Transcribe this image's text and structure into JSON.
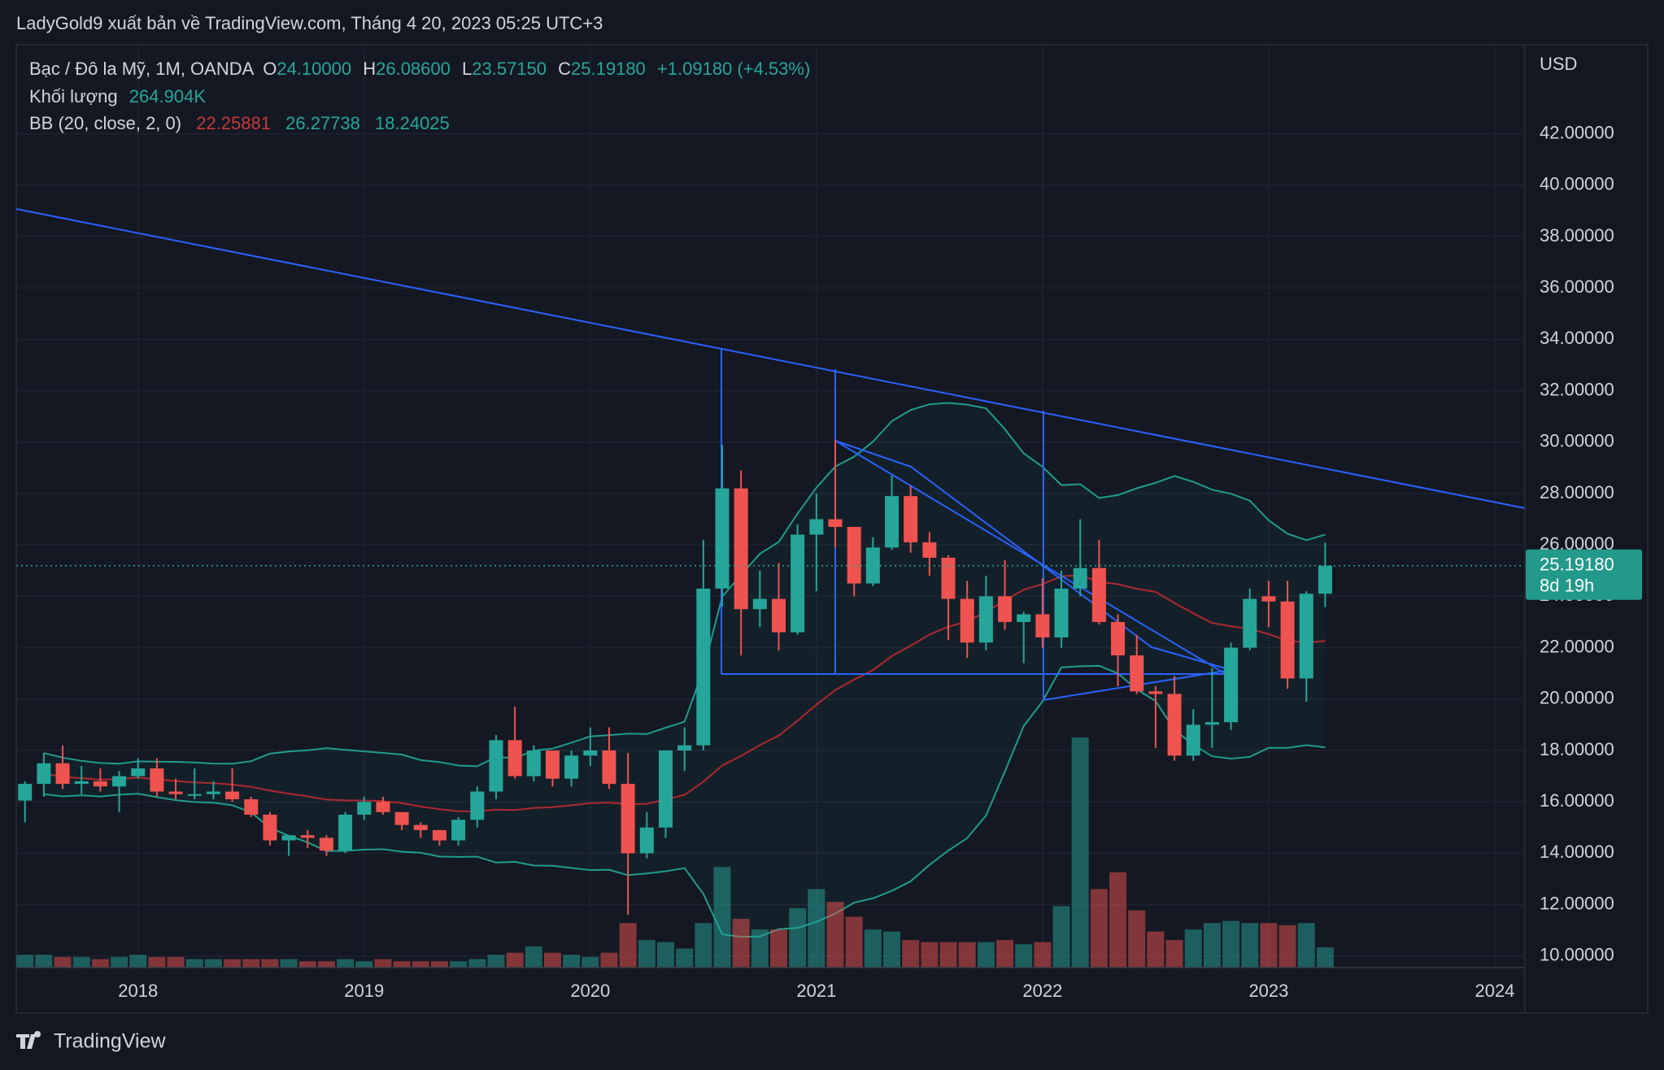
{
  "chart_data": {
    "type": "candlestick",
    "title": "LadyGold9 xuất bản về TradingView.com, Tháng 4 20, 2023 05:25 UTC+3",
    "legend": {
      "symbol": "Bạc / Đô la Mỹ, 1M, OANDA",
      "ohlc": [
        {
          "key": "O",
          "text": "24.10000"
        },
        {
          "key": "H",
          "text": "26.08600"
        },
        {
          "key": "L",
          "text": "23.57150"
        },
        {
          "key": "C",
          "text": "25.19180"
        }
      ],
      "change": "+1.09180 (+4.53%)",
      "volume_name": "Khối lượng",
      "volume_text": "264.904K",
      "bb_name": "BB (20, close, 2, 0)",
      "bb_texts": [
        "22.25881",
        "26.27738",
        "18.24025"
      ]
    },
    "currency": "USD",
    "last_label": {
      "price": "25.19180",
      "countdown": "8d 19h"
    },
    "brand": "TradingView",
    "up_color": "#26a69a",
    "down_color": "#ef5350",
    "categories": [
      null,
      null,
      null,
      null,
      null,
      null,
      "2018",
      null,
      null,
      null,
      null,
      null,
      null,
      null,
      null,
      null,
      null,
      null,
      "2019",
      null,
      null,
      null,
      null,
      null,
      null,
      null,
      null,
      null,
      null,
      null,
      "2020",
      null,
      null,
      null,
      null,
      null,
      null,
      null,
      null,
      null,
      null,
      null,
      "2021",
      null,
      null,
      null,
      null,
      null,
      null,
      null,
      null,
      null,
      null,
      null,
      "2022",
      null,
      null,
      null,
      null,
      null,
      null,
      null,
      null,
      null,
      null,
      null,
      "2023",
      null,
      null,
      null,
      null,
      null,
      null,
      null,
      null,
      null,
      null,
      null,
      "2024"
    ],
    "open": [
      16.05,
      16.7,
      17.5,
      16.7,
      16.8,
      16.6,
      17.0,
      17.3,
      16.4,
      16.3,
      16.3,
      16.4,
      16.1,
      15.5,
      14.5,
      14.7,
      14.6,
      14.1,
      15.5,
      16.0,
      15.6,
      15.1,
      14.9,
      14.5,
      15.3,
      16.4,
      18.4,
      17.0,
      18.0,
      16.9,
      17.8,
      18.0,
      16.7,
      14.0,
      15.0,
      18.0,
      18.2,
      24.3,
      28.2,
      23.5,
      23.9,
      22.6,
      26.4,
      27.0,
      26.7,
      24.5,
      25.9,
      27.9,
      26.1,
      25.5,
      23.9,
      22.2,
      24.0,
      23.0,
      23.3,
      22.4,
      24.3,
      25.1,
      23.0,
      21.7,
      20.3,
      20.2,
      17.8,
      19.0,
      19.1,
      22.0,
      24.0,
      23.8,
      20.8,
      24.1,
      null,
      null,
      null,
      null,
      null,
      null,
      null,
      null,
      null
    ],
    "high": [
      16.8,
      17.9,
      18.2,
      17.4,
      17.3,
      17.2,
      17.7,
      17.7,
      16.9,
      17.3,
      16.8,
      17.3,
      16.2,
      15.6,
      14.7,
      14.9,
      14.7,
      15.6,
      16.2,
      16.2,
      15.6,
      15.2,
      14.9,
      15.4,
      16.6,
      18.6,
      19.7,
      18.2,
      18.0,
      18.0,
      18.9,
      18.9,
      17.9,
      15.6,
      18.0,
      18.9,
      26.2,
      29.9,
      28.9,
      25.0,
      25.3,
      26.8,
      28.0,
      30.1,
      26.7,
      26.3,
      28.7,
      28.3,
      26.5,
      25.6,
      24.6,
      24.8,
      25.4,
      23.4,
      24.7,
      25.0,
      27.0,
      26.2,
      23.3,
      22.5,
      20.5,
      20.9,
      19.6,
      21.2,
      22.2,
      24.3,
      24.6,
      24.6,
      24.2,
      26.086,
      null,
      null,
      null,
      null,
      null,
      null,
      null,
      null,
      null
    ],
    "low": [
      15.2,
      16.2,
      16.5,
      16.3,
      16.4,
      15.6,
      16.9,
      16.2,
      16.1,
      16.1,
      16.1,
      16.0,
      15.4,
      14.3,
      13.9,
      14.2,
      13.9,
      14.0,
      15.3,
      15.5,
      14.9,
      14.6,
      14.3,
      14.3,
      15.0,
      16.1,
      16.9,
      16.8,
      16.6,
      16.6,
      17.4,
      16.5,
      11.6,
      13.8,
      14.6,
      17.2,
      18.0,
      23.6,
      21.7,
      22.8,
      21.9,
      22.5,
      24.2,
      25.9,
      24.0,
      24.4,
      25.8,
      25.7,
      24.8,
      22.3,
      21.6,
      21.9,
      22.7,
      21.4,
      22.0,
      22.0,
      24.0,
      22.9,
      20.5,
      20.2,
      18.1,
      17.6,
      17.6,
      18.1,
      18.8,
      21.9,
      22.8,
      20.4,
      19.9,
      23.5715,
      null,
      null,
      null,
      null,
      null,
      null,
      null,
      null,
      null
    ],
    "close": [
      16.7,
      17.5,
      16.7,
      16.8,
      16.6,
      17.0,
      17.3,
      16.4,
      16.3,
      16.3,
      16.4,
      16.1,
      15.5,
      14.5,
      14.7,
      14.6,
      14.1,
      15.5,
      16.0,
      15.6,
      15.1,
      14.9,
      14.5,
      15.3,
      16.4,
      18.4,
      17.0,
      18.0,
      16.9,
      17.8,
      18.0,
      16.7,
      14.0,
      15.0,
      18.0,
      18.2,
      24.3,
      28.2,
      23.5,
      23.9,
      22.6,
      26.4,
      27.0,
      26.7,
      24.5,
      25.9,
      27.9,
      26.1,
      25.5,
      23.9,
      22.2,
      24.0,
      23.0,
      23.3,
      22.4,
      24.3,
      25.1,
      23.0,
      21.7,
      20.3,
      20.2,
      17.8,
      19.0,
      19.1,
      22.0,
      23.9,
      23.8,
      20.8,
      24.1,
      25.1918,
      null,
      null,
      null,
      null,
      null,
      null,
      null,
      null,
      null
    ],
    "volume": [
      167000,
      167000,
      139000,
      139000,
      111000,
      139000,
      167000,
      139000,
      139000,
      111000,
      111000,
      111000,
      111000,
      111000,
      111000,
      83000,
      83000,
      111000,
      83000,
      111000,
      83000,
      83000,
      83000,
      83000,
      111000,
      167000,
      195000,
      278000,
      195000,
      167000,
      139000,
      195000,
      584000,
      361000,
      334000,
      250000,
      584000,
      1320000,
      640000,
      500000,
      500000,
      778000,
      1030000,
      862000,
      667000,
      500000,
      473000,
      361000,
      334000,
      334000,
      334000,
      334000,
      361000,
      306000,
      334000,
      806000,
      3020000,
      1030000,
      1250000,
      751000,
      473000,
      361000,
      500000,
      584000,
      612000,
      584000,
      584000,
      556000,
      584000,
      264904,
      null,
      null,
      null,
      null,
      null,
      null,
      null,
      null,
      null
    ],
    "ylim": [
      9.55,
      44.93
    ],
    "yticks": [
      {
        "value": 10,
        "label": "10.00000"
      },
      {
        "value": 12,
        "label": "12.00000"
      },
      {
        "value": 14,
        "label": "14.00000"
      },
      {
        "value": 16,
        "label": "16.00000"
      },
      {
        "value": 18,
        "label": "18.00000"
      },
      {
        "value": 20,
        "label": "20.00000"
      },
      {
        "value": 22,
        "label": "22.00000"
      },
      {
        "value": 24,
        "label": "24.00000"
      },
      {
        "value": 26,
        "label": "26.00000"
      },
      {
        "value": 28,
        "label": "28.00000"
      },
      {
        "value": 30,
        "label": "30.00000"
      },
      {
        "value": 32,
        "label": "32.00000"
      },
      {
        "value": 34,
        "label": "34.00000"
      },
      {
        "value": 36,
        "label": "36.00000"
      },
      {
        "value": 38,
        "label": "38.00000"
      },
      {
        "value": 40,
        "label": "40.00000"
      },
      {
        "value": 42,
        "label": "42.00000"
      }
    ],
    "grid": true
  }
}
